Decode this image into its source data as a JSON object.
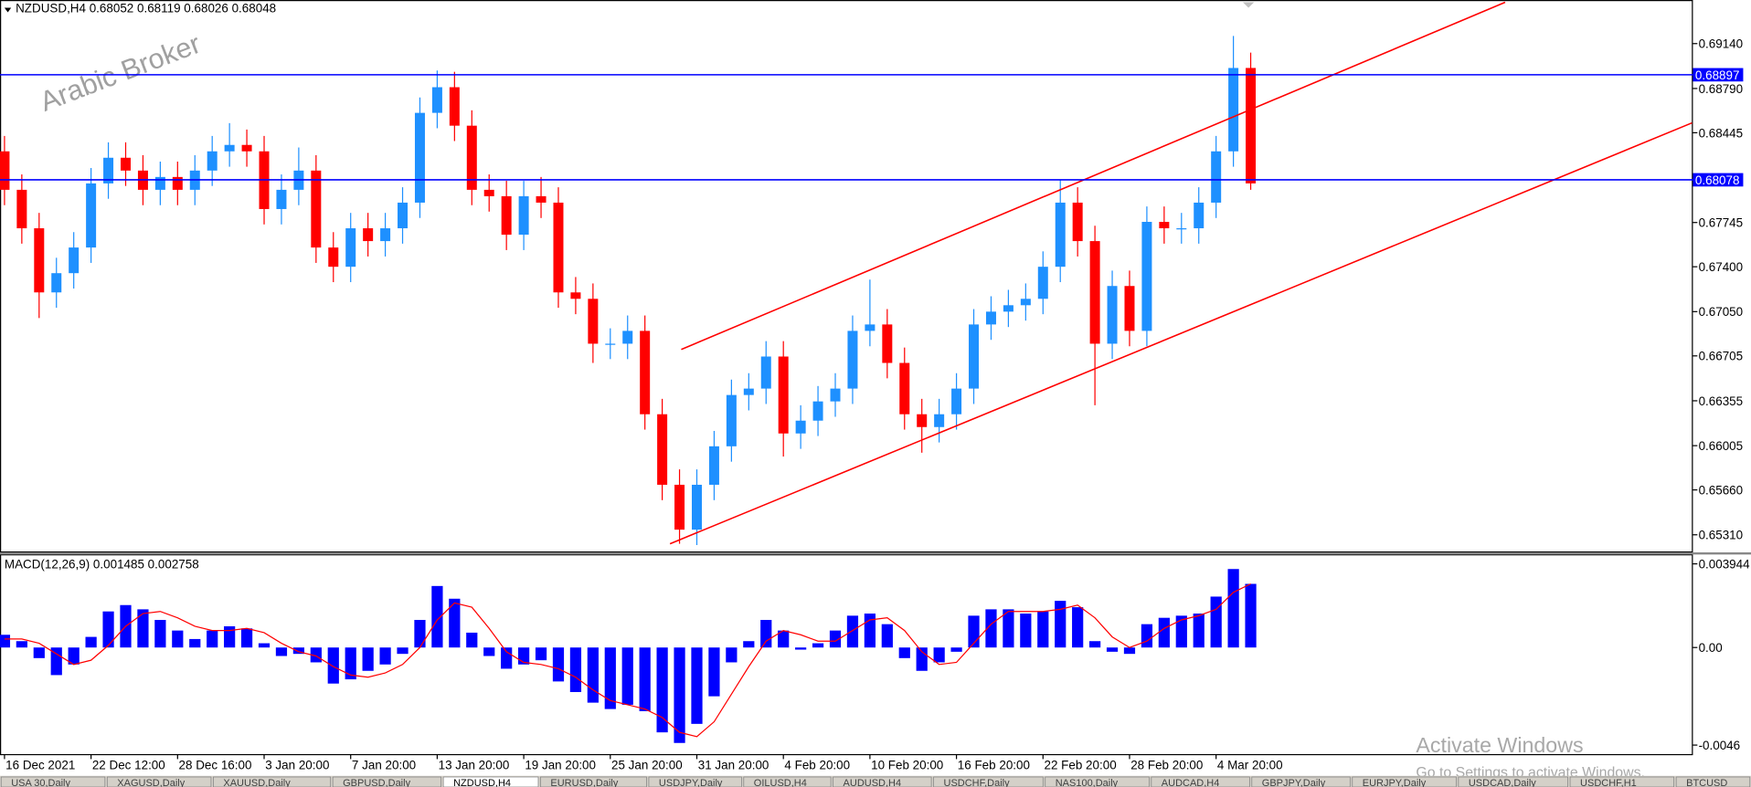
{
  "chart_data": [
    {
      "type": "candlestick",
      "title": "NZDUSD,H4  0.68052 0.68119 0.68026 0.68048",
      "open": [
        0.683,
        0.68,
        0.677,
        0.672,
        0.6735,
        0.6755,
        0.6805,
        0.6825,
        0.6815,
        0.68,
        0.681,
        0.68,
        0.6815,
        0.683,
        0.6835,
        0.683,
        0.6785,
        0.68,
        0.6815,
        0.6755,
        0.674,
        0.677,
        0.676,
        0.677,
        0.679,
        0.686,
        0.688,
        0.685,
        0.68,
        0.6795,
        0.6765,
        0.6795,
        0.679,
        0.672,
        0.6715,
        0.668,
        0.668,
        0.669,
        0.6625,
        0.657,
        0.6535,
        0.657,
        0.66,
        0.664,
        0.6645,
        0.667,
        0.661,
        0.662,
        0.6635,
        0.6645,
        0.669,
        0.6695,
        0.6665,
        0.6625,
        0.6615,
        0.6625,
        0.6645,
        0.6695,
        0.6705,
        0.671,
        0.6715,
        0.674,
        0.679,
        0.676,
        0.668,
        0.6725,
        0.669,
        0.6775,
        0.677,
        0.677,
        0.679,
        0.683,
        0.6895
      ],
      "high": [
        0.6842,
        0.6812,
        0.6782,
        0.6747,
        0.6767,
        0.6817,
        0.6837,
        0.6837,
        0.6827,
        0.6822,
        0.6822,
        0.6827,
        0.6842,
        0.6852,
        0.6847,
        0.6842,
        0.6812,
        0.6833,
        0.6827,
        0.6767,
        0.6782,
        0.6782,
        0.6782,
        0.6802,
        0.6872,
        0.6893,
        0.6892,
        0.6862,
        0.6812,
        0.6807,
        0.6807,
        0.681,
        0.6802,
        0.6732,
        0.6727,
        0.6692,
        0.6702,
        0.6702,
        0.6637,
        0.6582,
        0.6582,
        0.6612,
        0.6652,
        0.6657,
        0.6682,
        0.6682,
        0.6632,
        0.6647,
        0.6657,
        0.6702,
        0.673,
        0.6707,
        0.6677,
        0.6637,
        0.6637,
        0.6657,
        0.6707,
        0.6717,
        0.6722,
        0.6727,
        0.6752,
        0.6808,
        0.6802,
        0.6772,
        0.6737,
        0.6737,
        0.6787,
        0.6787,
        0.6782,
        0.6802,
        0.6842,
        0.692,
        0.6907
      ],
      "low": [
        0.6788,
        0.6758,
        0.67,
        0.6708,
        0.6723,
        0.6743,
        0.6793,
        0.6803,
        0.6788,
        0.6788,
        0.6788,
        0.6788,
        0.6803,
        0.6818,
        0.6818,
        0.6773,
        0.6773,
        0.6788,
        0.6743,
        0.6728,
        0.6728,
        0.6748,
        0.6748,
        0.6758,
        0.6778,
        0.6848,
        0.6838,
        0.6788,
        0.6783,
        0.6753,
        0.6753,
        0.6778,
        0.6708,
        0.6703,
        0.6665,
        0.6668,
        0.6668,
        0.6613,
        0.6558,
        0.6524,
        0.6523,
        0.6558,
        0.6588,
        0.6628,
        0.6633,
        0.6592,
        0.6598,
        0.6608,
        0.6623,
        0.6633,
        0.6678,
        0.6653,
        0.6613,
        0.6595,
        0.6603,
        0.6613,
        0.6633,
        0.6683,
        0.6693,
        0.6698,
        0.6703,
        0.6728,
        0.6748,
        0.6632,
        0.6668,
        0.6678,
        0.6678,
        0.6758,
        0.6758,
        0.6758,
        0.6778,
        0.6818,
        0.68
      ],
      "close": [
        0.68,
        0.677,
        0.672,
        0.6735,
        0.6755,
        0.6805,
        0.6825,
        0.6815,
        0.68,
        0.681,
        0.68,
        0.6815,
        0.683,
        0.6835,
        0.683,
        0.6785,
        0.68,
        0.6815,
        0.6755,
        0.674,
        0.677,
        0.676,
        0.677,
        0.679,
        0.686,
        0.688,
        0.685,
        0.68,
        0.6795,
        0.6765,
        0.6795,
        0.679,
        0.672,
        0.6715,
        0.668,
        0.668,
        0.669,
        0.6625,
        0.657,
        0.6535,
        0.657,
        0.66,
        0.664,
        0.6645,
        0.667,
        0.661,
        0.662,
        0.6635,
        0.6645,
        0.669,
        0.6695,
        0.6665,
        0.6625,
        0.6615,
        0.6625,
        0.6645,
        0.6695,
        0.6705,
        0.671,
        0.6715,
        0.674,
        0.679,
        0.676,
        0.668,
        0.6725,
        0.669,
        0.6775,
        0.677,
        0.677,
        0.679,
        0.683,
        0.6895,
        0.6805
      ],
      "up_color": "#1e90ff",
      "down_color": "#ff0000",
      "xlim": [
        -0.26,
        97.55
      ],
      "ylim": [
        0.6518,
        0.6948
      ],
      "yticks": [
        {
          "value": 0.6914,
          "label": "0.69140"
        },
        {
          "value": 0.6879,
          "label": "0.68790"
        },
        0.68445,
        0.67745,
        {
          "value": 0.674,
          "label": "0.67400"
        },
        {
          "value": 0.6705,
          "label": "0.67050"
        },
        0.66705,
        0.66355,
        0.66005,
        {
          "value": 0.6566,
          "label": "0.65660"
        },
        {
          "value": 0.6531,
          "label": "0.65310"
        }
      ],
      "levels": [
        {
          "value": 0.68897,
          "color": "#0000ff"
        },
        {
          "value": 0.68078,
          "color": "#0000ff"
        }
      ],
      "trendlines": [
        {
          "x": [
            39.1,
            86.7
          ],
          "y": [
            0.66755,
            0.69462
          ],
          "color": "#ff0000"
        },
        {
          "x": [
            38.45,
            97.5
          ],
          "y": [
            0.6524,
            0.68522
          ],
          "color": "#ff0000"
        }
      ]
    },
    {
      "type": "bar",
      "title": "MACD(12,26,9) 0.001485 0.002758",
      "values": [
        0.0006,
        0.0003,
        -0.0005,
        -0.0013,
        -0.0008,
        0.0005,
        0.0017,
        0.002,
        0.0018,
        0.0013,
        0.0008,
        0.0004,
        0.0008,
        0.001,
        0.0009,
        0.0002,
        -0.0004,
        -0.0003,
        -0.0007,
        -0.0017,
        -0.0015,
        -0.0011,
        -0.0008,
        -0.0003,
        0.0013,
        0.0029,
        0.0023,
        0.0007,
        -0.0004,
        -0.001,
        -0.0008,
        -0.0006,
        -0.0016,
        -0.0021,
        -0.0026,
        -0.0029,
        -0.0027,
        -0.003,
        -0.004,
        -0.0045,
        -0.0036,
        -0.0023,
        -0.0007,
        0.0003,
        0.0013,
        0.0008,
        -0.0001,
        0.0002,
        0.0008,
        0.0015,
        0.0016,
        0.0011,
        -0.0005,
        -0.0011,
        -0.0007,
        -0.0002,
        0.0015,
        0.0018,
        0.0018,
        0.0016,
        0.0017,
        0.0022,
        0.0019,
        0.0003,
        -0.0002,
        -0.0003,
        0.0011,
        0.0014,
        0.0015,
        0.0016,
        0.0024,
        0.0037,
        0.003
      ],
      "color": "#0000ff",
      "signal": [
        0.0004,
        0.0004,
        0.0002,
        -0.0003,
        -0.0008,
        -0.0006,
        0.0001,
        0.001,
        0.0016,
        0.0017,
        0.0014,
        0.001,
        0.0008,
        0.0008,
        0.0009,
        0.0007,
        0.0002,
        -0.0002,
        -0.0004,
        -0.0009,
        -0.0013,
        -0.0014,
        -0.0012,
        -0.0008,
        0.0,
        0.0013,
        0.0021,
        0.0019,
        0.0009,
        -0.0002,
        -0.0007,
        -0.0008,
        -0.001,
        -0.0014,
        -0.002,
        -0.0025,
        -0.0027,
        -0.0029,
        -0.0033,
        -0.004,
        -0.0042,
        -0.0035,
        -0.0022,
        -0.0009,
        0.0003,
        0.0008,
        0.0006,
        0.0003,
        0.0003,
        0.0008,
        0.0013,
        0.0014,
        0.0008,
        -0.0002,
        -0.0008,
        -0.0007,
        0.0002,
        0.0011,
        0.0017,
        0.0017,
        0.0017,
        0.0018,
        0.002,
        0.0014,
        0.0005,
        0.0,
        0.0003,
        0.0009,
        0.0013,
        0.0015,
        0.0018,
        0.0026,
        0.003
      ],
      "signal_color": "#ff0000",
      "xlim": [
        -0.26,
        97.55
      ],
      "ylim": [
        -0.00505,
        0.00437
      ],
      "yticks": [
        0.003944,
        {
          "value": 0,
          "label": "0.00"
        },
        -0.0046
      ],
      "xticks": [
        {
          "value": 0,
          "label": "16 Dec 2021"
        },
        {
          "value": 5,
          "label": "22 Dec 12:00"
        },
        {
          "value": 10,
          "label": "28 Dec 16:00"
        },
        {
          "value": 15,
          "label": "3 Jan 20:00"
        },
        {
          "value": 20,
          "label": "7 Jan 20:00"
        },
        {
          "value": 25,
          "label": "13 Jan 20:00"
        },
        {
          "value": 30,
          "label": "19 Jan 20:00"
        },
        {
          "value": 35,
          "label": "25 Jan 20:00"
        },
        {
          "value": 40,
          "label": "31 Jan 20:00"
        },
        {
          "value": 45,
          "label": "4 Feb 20:00"
        },
        {
          "value": 50,
          "label": "10 Feb 20:00"
        },
        {
          "value": 55,
          "label": "16 Feb 20:00"
        },
        {
          "value": 60,
          "label": "22 Feb 20:00"
        },
        {
          "value": 65,
          "label": "28 Feb 20:00"
        },
        {
          "value": 70,
          "label": "4 Mar 20:00"
        }
      ]
    }
  ],
  "watermark": "Arabic Broker",
  "activation": {
    "title": "Activate Windows",
    "subtitle": "Go to Settings to activate Windows."
  },
  "tabs": [
    "USA 30,Daily",
    "XAGUSD,Daily",
    "XAUUSD,Daily",
    "GBPUSD,Daily",
    "NZDUSD,H4",
    "EURUSD,Daily",
    "USDJPY,Daily",
    "OILUSD,H4",
    "AUDUSD,H4",
    "USDCHF,Daily",
    "NAS100,Daily",
    "AUDCAD,H4",
    "GBPJPY,Daily",
    "EURJPY,Daily",
    "USDCAD,Daily",
    "USDCHF,H1",
    "BTCUSD"
  ],
  "active_tab": 4
}
